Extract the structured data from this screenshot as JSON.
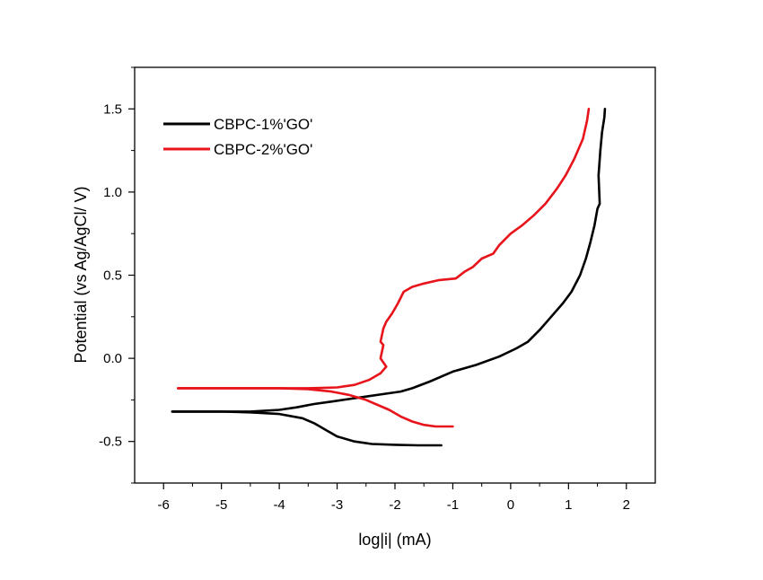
{
  "chart_data": {
    "type": "line",
    "xlabel": "log|i| (mA)",
    "ylabel": "Potential (vs Ag/AgCl/ V)",
    "xlim": [
      -6.5,
      2.5
    ],
    "ylim": [
      -0.75,
      1.75
    ],
    "xticks": [
      -6,
      -5,
      -4,
      -3,
      -2,
      -1,
      0,
      1,
      2
    ],
    "yticks": [
      -0.5,
      0.0,
      0.5,
      1.0,
      1.5
    ],
    "xtick_labels": [
      "-6",
      "-5",
      "-4",
      "-3",
      "-2",
      "-1",
      "0",
      "1",
      "2"
    ],
    "ytick_labels": [
      "-0.5",
      "0.0",
      "0.5",
      "1.0",
      "1.5"
    ],
    "grid": false,
    "legend_position": "top-left",
    "series": [
      {
        "name": "CBPC-1%'GO'",
        "color": "#000000",
        "x": [
          -5.85,
          -5.0,
          -4.5,
          -4.0,
          -3.7,
          -3.4,
          -3.1,
          -2.8,
          -2.5,
          -2.2,
          -1.9,
          -1.7,
          -1.4,
          -1.0,
          -0.6,
          -0.2,
          0.1,
          0.3,
          0.5,
          0.7,
          0.9,
          1.05,
          1.2,
          1.3,
          1.38,
          1.45,
          1.5,
          1.54,
          1.52,
          1.55,
          1.58,
          1.62,
          1.63
        ],
        "y": [
          -0.32,
          -0.32,
          -0.32,
          -0.31,
          -0.295,
          -0.275,
          -0.26,
          -0.245,
          -0.23,
          -0.215,
          -0.2,
          -0.18,
          -0.14,
          -0.08,
          -0.04,
          0.01,
          0.06,
          0.1,
          0.17,
          0.25,
          0.33,
          0.4,
          0.5,
          0.6,
          0.7,
          0.8,
          0.9,
          0.93,
          1.1,
          1.25,
          1.36,
          1.45,
          1.5
        ]
      },
      {
        "name": "CBPC-1%'GO'",
        "color": "#000000",
        "x": [
          -5.85,
          -5.0,
          -4.5,
          -4.0,
          -3.6,
          -3.4,
          -3.2,
          -3.0,
          -2.7,
          -2.4,
          -2.0,
          -1.6,
          -1.2
        ],
        "y": [
          -0.32,
          -0.32,
          -0.325,
          -0.335,
          -0.36,
          -0.39,
          -0.43,
          -0.47,
          -0.5,
          -0.515,
          -0.52,
          -0.523,
          -0.523
        ]
      },
      {
        "name": "CBPC-2%'GO'",
        "color": "#e8141b",
        "x": [
          -5.75,
          -5.0,
          -4.0,
          -3.5,
          -3.0,
          -2.7,
          -2.45,
          -2.25,
          -2.15,
          -2.25,
          -2.2,
          -2.25,
          -2.2,
          -2.15,
          -2.05,
          -1.95,
          -1.85,
          -1.7,
          -1.5,
          -1.25,
          -0.95,
          -0.8,
          -0.65,
          -0.5,
          -0.3,
          -0.2,
          0.0,
          0.2,
          0.4,
          0.6,
          0.8,
          0.95,
          1.1,
          1.25,
          1.32,
          1.35
        ],
        "y": [
          -0.18,
          -0.18,
          -0.18,
          -0.18,
          -0.175,
          -0.16,
          -0.13,
          -0.09,
          -0.05,
          0.0,
          0.08,
          0.1,
          0.18,
          0.22,
          0.27,
          0.33,
          0.4,
          0.43,
          0.45,
          0.47,
          0.48,
          0.52,
          0.55,
          0.6,
          0.63,
          0.68,
          0.75,
          0.8,
          0.86,
          0.93,
          1.02,
          1.1,
          1.2,
          1.32,
          1.43,
          1.5
        ]
      },
      {
        "name": "CBPC-2%'GO'",
        "color": "#e8141b",
        "x": [
          -5.75,
          -5.0,
          -4.0,
          -3.5,
          -3.1,
          -2.8,
          -2.5,
          -2.3,
          -2.1,
          -1.9,
          -1.7,
          -1.5,
          -1.3,
          -1.0
        ],
        "y": [
          -0.18,
          -0.18,
          -0.18,
          -0.185,
          -0.2,
          -0.22,
          -0.25,
          -0.28,
          -0.31,
          -0.35,
          -0.38,
          -0.4,
          -0.41,
          -0.41
        ]
      }
    ],
    "legend": [
      {
        "label": "CBPC-1%'GO'",
        "color": "#000000"
      },
      {
        "label": "CBPC-2%'GO'",
        "color": "#e8141b"
      }
    ]
  }
}
